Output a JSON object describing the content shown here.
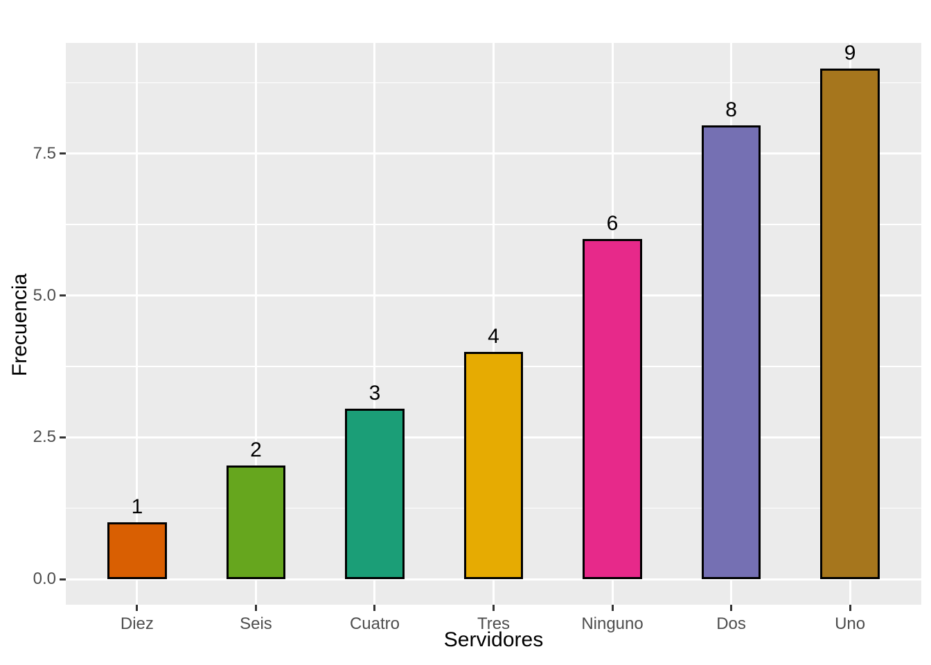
{
  "chart_data": {
    "type": "bar",
    "categories": [
      "Diez",
      "Seis",
      "Cuatro",
      "Tres",
      "Ninguno",
      "Dos",
      "Uno"
    ],
    "values": [
      1,
      2,
      3,
      4,
      6,
      8,
      9
    ],
    "bar_labels": [
      "1",
      "2",
      "3",
      "4",
      "6",
      "8",
      "9"
    ],
    "bar_colors": [
      "#D95F02",
      "#66A61E",
      "#1B9E77",
      "#E6AB02",
      "#E7298A",
      "#7570B3",
      "#A6761D"
    ],
    "title": "",
    "xlabel": "Servidores",
    "ylabel": "Frecuencia",
    "y_tick_labels": [
      "0.0",
      "2.5",
      "5.0",
      "7.5"
    ],
    "y_tick_values": [
      0,
      2.5,
      5,
      7.5
    ],
    "y_minor_values": [
      1.25,
      3.75,
      6.25,
      8.75
    ],
    "ylim": [
      -0.45,
      9.45
    ],
    "xlim": [
      0.4,
      7.6
    ],
    "bar_width_units": 0.5,
    "grid": "on",
    "legend_position": "none",
    "panel_background": "#EBEBEB",
    "grid_color": "#FFFFFF",
    "bar_outline_color": "#000000",
    "tick_mark_color": "#333333",
    "tick_text_color": "#4D4D4D",
    "axis_title_color": "#000000"
  }
}
